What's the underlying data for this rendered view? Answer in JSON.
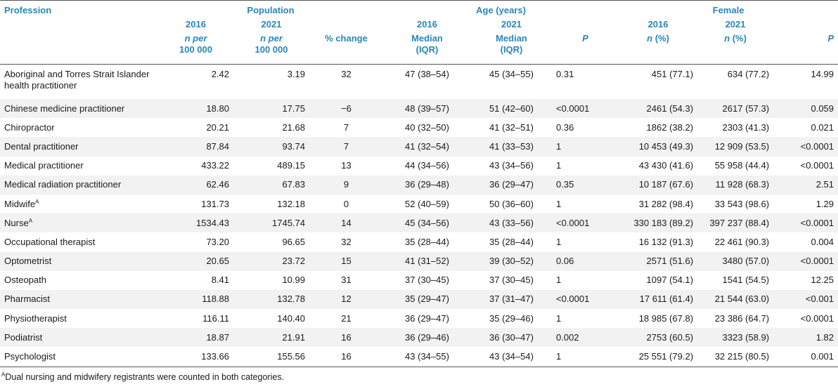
{
  "headers": {
    "profession": "Profession",
    "population": "Population",
    "age": "Age (years)",
    "female": "Female",
    "y2016": "2016",
    "y2021": "2021",
    "n_per_line1": "n per",
    "n_per_line2": "100 000",
    "pct_change": "% change",
    "median": "Median",
    "iqr": "(IQR)",
    "p": "P",
    "n_pct": "(%)",
    "n": "n"
  },
  "rows": [
    {
      "profession": "Aboriginal and Torres Strait Islander health practitioner",
      "sup": "",
      "pop2016": "2.42",
      "pop2021": "3.19",
      "change": "32",
      "age2016": "47 (38–54)",
      "age2021": "45 (34–55)",
      "age_p": "0.31",
      "f2016": "451 (77.1)",
      "f2021": "634 (77.2)",
      "f_p": "14.99"
    },
    {
      "profession": "Chinese medicine practitioner",
      "sup": "",
      "pop2016": "18.80",
      "pop2021": "17.75",
      "change": "−6",
      "age2016": "48 (39–57)",
      "age2021": "51 (42–60)",
      "age_p": "<0.0001",
      "f2016": "2461 (54.3)",
      "f2021": "2617 (57.3)",
      "f_p": "0.059"
    },
    {
      "profession": "Chiropractor",
      "sup": "",
      "pop2016": "20.21",
      "pop2021": "21.68",
      "change": "7",
      "age2016": "40 (32–50)",
      "age2021": "41 (32–51)",
      "age_p": "0.36",
      "f2016": "1862 (38.2)",
      "f2021": "2303 (41.3)",
      "f_p": "0.021"
    },
    {
      "profession": "Dental practitioner",
      "sup": "",
      "pop2016": "87.84",
      "pop2021": "93.74",
      "change": "7",
      "age2016": "41 (32–54)",
      "age2021": "41 (33–53)",
      "age_p": "1",
      "f2016": "10 453 (49.3)",
      "f2021": "12 909 (53.5)",
      "f_p": "<0.0001"
    },
    {
      "profession": "Medical practitioner",
      "sup": "",
      "pop2016": "433.22",
      "pop2021": "489.15",
      "change": "13",
      "age2016": "44 (34–56)",
      "age2021": "43 (34–56)",
      "age_p": "1",
      "f2016": "43 430 (41.6)",
      "f2021": "55 958 (44.4)",
      "f_p": "<0.0001"
    },
    {
      "profession": "Medical radiation practitioner",
      "sup": "",
      "pop2016": "62.46",
      "pop2021": "67.83",
      "change": "9",
      "age2016": "36 (29–48)",
      "age2021": "36 (29–47)",
      "age_p": "0.35",
      "f2016": "10 187 (67.6)",
      "f2021": "11 928 (68.3)",
      "f_p": "2.51"
    },
    {
      "profession": "Midwife",
      "sup": "A",
      "pop2016": "131.73",
      "pop2021": "132.18",
      "change": "0",
      "age2016": "52 (40–59)",
      "age2021": "50 (36–60)",
      "age_p": "1",
      "f2016": "31 282 (98.4)",
      "f2021": "33 543 (98.6)",
      "f_p": "1.29"
    },
    {
      "profession": "Nurse",
      "sup": "A",
      "pop2016": "1534.43",
      "pop2021": "1745.74",
      "change": "14",
      "age2016": "45 (34–56)",
      "age2021": "43 (33–56)",
      "age_p": "<0.0001",
      "f2016": "330 183 (89.2)",
      "f2021": "397 237 (88.4)",
      "f_p": "<0.0001"
    },
    {
      "profession": "Occupational therapist",
      "sup": "",
      "pop2016": "73.20",
      "pop2021": "96.65",
      "change": "32",
      "age2016": "35 (28–44)",
      "age2021": "35 (28–44)",
      "age_p": "1",
      "f2016": "16 132 (91.3)",
      "f2021": "22 461 (90.3)",
      "f_p": "0.004"
    },
    {
      "profession": "Optometrist",
      "sup": "",
      "pop2016": "20.65",
      "pop2021": "23.72",
      "change": "15",
      "age2016": "41 (31–52)",
      "age2021": "39 (30–52)",
      "age_p": "0.06",
      "f2016": "2571 (51.6)",
      "f2021": "3480 (57.0)",
      "f_p": "<0.0001"
    },
    {
      "profession": "Osteopath",
      "sup": "",
      "pop2016": "8.41",
      "pop2021": "10.99",
      "change": "31",
      "age2016": "37 (30–45)",
      "age2021": "37 (30–45)",
      "age_p": "1",
      "f2016": "1097 (54.1)",
      "f2021": "1541 (54.5)",
      "f_p": "12.25"
    },
    {
      "profession": "Pharmacist",
      "sup": "",
      "pop2016": "118.88",
      "pop2021": "132.78",
      "change": "12",
      "age2016": "35 (29–47)",
      "age2021": "37 (31–47)",
      "age_p": "<0.0001",
      "f2016": "17 611 (61.4)",
      "f2021": "21 544 (63.0)",
      "f_p": "<0.001"
    },
    {
      "profession": "Physiotherapist",
      "sup": "",
      "pop2016": "116.11",
      "pop2021": "140.40",
      "change": "21",
      "age2016": "36 (29–47)",
      "age2021": "35 (29–46)",
      "age_p": "1",
      "f2016": "18 985 (67.8)",
      "f2021": "23 386 (64.7)",
      "f_p": "<0.0001"
    },
    {
      "profession": "Podiatrist",
      "sup": "",
      "pop2016": "18.87",
      "pop2021": "21.91",
      "change": "16",
      "age2016": "36 (29–46)",
      "age2021": "36 (30–47)",
      "age_p": "0.002",
      "f2016": "2753 (60.5)",
      "f2021": "3323 (58.9)",
      "f_p": "1.82"
    },
    {
      "profession": "Psychologist",
      "sup": "",
      "pop2016": "133.66",
      "pop2021": "155.56",
      "change": "16",
      "age2016": "43 (34–55)",
      "age2021": "43 (34–54)",
      "age_p": "1",
      "f2016": "25 551 (79.2)",
      "f2021": "32 215 (80.5)",
      "f_p": "0.001"
    }
  ],
  "footnote": {
    "marker": "A",
    "text": "Dual nursing and midwifery registrants were counted in both categories."
  }
}
